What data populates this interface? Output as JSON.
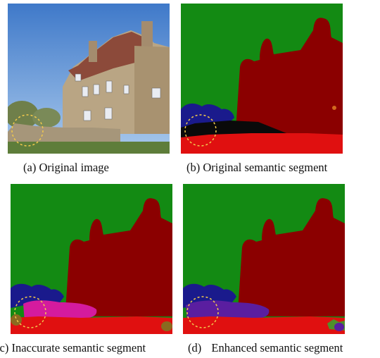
{
  "figure": {
    "panels": [
      {
        "id": "a",
        "label": "(a)",
        "caption": "Original image"
      },
      {
        "id": "b",
        "label": "(b)",
        "caption": "Original semantic segment"
      },
      {
        "id": "c",
        "label": "(c)",
        "caption": "Inaccurate semantic segment"
      },
      {
        "id": "d",
        "label": "(d)",
        "caption": "Enhanced semantic segment"
      }
    ]
  },
  "segment_colors": {
    "sky": "#138a13",
    "building": "#8b0000",
    "wall": "#1a1a8c",
    "wall_inaccurate": "#d41b9e",
    "wall_enhanced": "#5a1ea0",
    "shadow": "#0a0a0a",
    "ground": "#e01010",
    "highlight_circle": "#f2c94c"
  }
}
